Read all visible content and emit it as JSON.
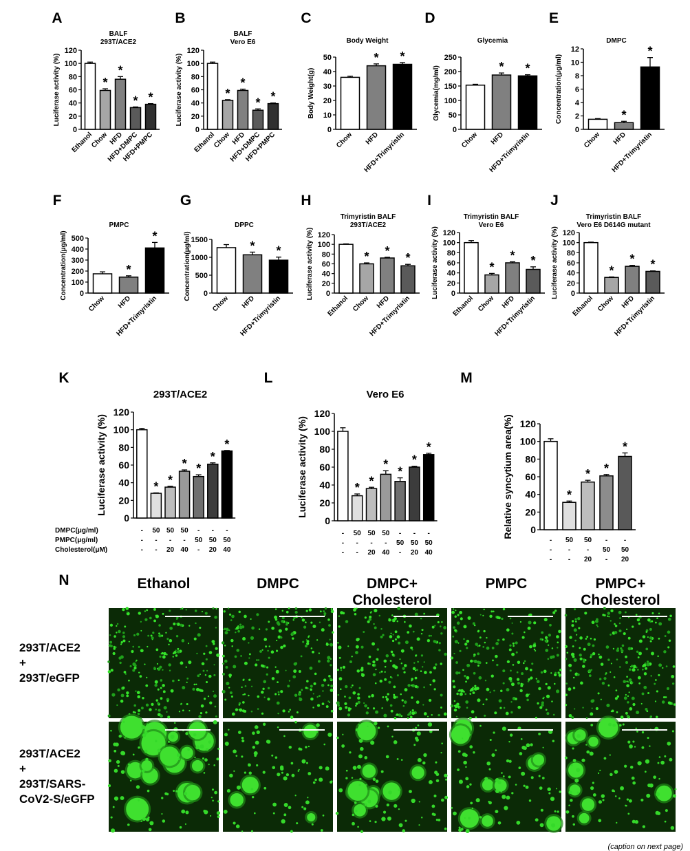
{
  "chart_data": [
    {
      "id": "A",
      "type": "bar",
      "title": "BALF\n293T/ACE2",
      "ylabel": "Luciferase activity (%)",
      "ylim": [
        0,
        120
      ],
      "yticks": [
        0,
        20,
        40,
        60,
        80,
        100,
        120
      ],
      "categories": [
        "Ethanol",
        "Chow",
        "HFD",
        "HFD+DMPC",
        "HFD+PMPC"
      ],
      "values": [
        100,
        59,
        76,
        33,
        38
      ],
      "errors": [
        2,
        2.5,
        4,
        1,
        1
      ],
      "colors": [
        "#ffffff",
        "#a6a6a6",
        "#808080",
        "#5a5a5a",
        "#303030"
      ],
      "stars": [
        false,
        true,
        true,
        true,
        true
      ]
    },
    {
      "id": "B",
      "type": "bar",
      "title": "BALF\nVero E6",
      "ylabel": "Luciferase activity (%)",
      "ylim": [
        0,
        120
      ],
      "yticks": [
        0,
        20,
        40,
        60,
        80,
        100,
        120
      ],
      "categories": [
        "Ethanol",
        "Chow",
        "HFD",
        "HFD+DMPC",
        "HFD+PMPC"
      ],
      "values": [
        100,
        44,
        59,
        29,
        39
      ],
      "errors": [
        2,
        1,
        2,
        2,
        1
      ],
      "colors": [
        "#ffffff",
        "#a6a6a6",
        "#808080",
        "#5a5a5a",
        "#303030"
      ],
      "stars": [
        false,
        true,
        true,
        true,
        true
      ]
    },
    {
      "id": "C",
      "type": "bar",
      "title": "Body Weight",
      "ylabel": "Body Weight(g)",
      "ylim": [
        0,
        50
      ],
      "yticks": [
        0,
        10,
        20,
        30,
        40,
        50
      ],
      "categories": [
        "Chow",
        "HFD",
        "HFD+Trimyristin"
      ],
      "values": [
        36,
        44,
        45
      ],
      "errors": [
        0.8,
        1.3,
        1.2
      ],
      "colors": [
        "#ffffff",
        "#808080",
        "#000000"
      ],
      "stars": [
        false,
        true,
        true
      ]
    },
    {
      "id": "D",
      "type": "bar",
      "title": "Glycemia",
      "ylabel": "Glycemia(mg/ml)",
      "ylim": [
        0,
        250
      ],
      "yticks": [
        0,
        50,
        100,
        150,
        200,
        250
      ],
      "categories": [
        "Chow",
        "HFD",
        "HFD+Trimyristin"
      ],
      "values": [
        153,
        188,
        185
      ],
      "errors": [
        3,
        7,
        4
      ],
      "colors": [
        "#ffffff",
        "#808080",
        "#000000"
      ],
      "stars": [
        false,
        true,
        true
      ]
    },
    {
      "id": "E",
      "type": "bar",
      "title": "DMPC",
      "ylabel": "Concentration(μg/ml)",
      "ylim": [
        0,
        12
      ],
      "yticks": [
        0,
        2,
        4,
        6,
        8,
        10,
        12
      ],
      "categories": [
        "Chow",
        "HFD",
        "HFD+Trimyristin"
      ],
      "values": [
        1.5,
        1.0,
        9.3
      ],
      "errors": [
        0.1,
        0.2,
        1.4
      ],
      "colors": [
        "#ffffff",
        "#808080",
        "#000000"
      ],
      "stars": [
        false,
        true,
        true
      ]
    },
    {
      "id": "F",
      "type": "bar",
      "title": "PMPC",
      "ylabel": "Concentration(μg/ml)",
      "ylim": [
        0,
        500
      ],
      "yticks": [
        0,
        100,
        200,
        300,
        400,
        500
      ],
      "categories": [
        "Chow",
        "HFD",
        "HFD+Trimyristin"
      ],
      "values": [
        175,
        145,
        410
      ],
      "errors": [
        18,
        12,
        50
      ],
      "colors": [
        "#ffffff",
        "#808080",
        "#000000"
      ],
      "stars": [
        false,
        true,
        true
      ]
    },
    {
      "id": "G",
      "type": "bar",
      "title": "DPPC",
      "ylabel": "Concentration(μg/ml)",
      "ylim": [
        0,
        1500
      ],
      "yticks": [
        0,
        500,
        1000,
        1500
      ],
      "categories": [
        "Chow",
        "HFD",
        "HFD+Trimyristin"
      ],
      "values": [
        1270,
        1070,
        920
      ],
      "errors": [
        85,
        75,
        85
      ],
      "colors": [
        "#ffffff",
        "#808080",
        "#000000"
      ],
      "stars": [
        false,
        true,
        true
      ]
    },
    {
      "id": "H",
      "type": "bar",
      "title": "Trimyristin BALF\n293T/ACE2",
      "ylabel": "Luciferase activity (%)",
      "ylim": [
        0,
        120
      ],
      "yticks": [
        0,
        20,
        40,
        60,
        80,
        100,
        120
      ],
      "categories": [
        "Ethanol",
        "Chow",
        "HFD",
        "HFD+Trimyristin"
      ],
      "values": [
        100,
        60,
        72,
        56
      ],
      "errors": [
        1,
        2,
        1.5,
        3
      ],
      "colors": [
        "#ffffff",
        "#a6a6a6",
        "#808080",
        "#5a5a5a"
      ],
      "stars": [
        false,
        true,
        true,
        true
      ]
    },
    {
      "id": "I",
      "type": "bar",
      "title": "Trimyristin BALF\nVero E6",
      "ylabel": "Luciferase activity (%)",
      "ylim": [
        0,
        120
      ],
      "yticks": [
        0,
        20,
        40,
        60,
        80,
        100,
        120
      ],
      "categories": [
        "Ethanol",
        "Chow",
        "HFD",
        "HFD+Trimyristin"
      ],
      "values": [
        100,
        36,
        60,
        47
      ],
      "errors": [
        4,
        3,
        2,
        5
      ],
      "colors": [
        "#ffffff",
        "#a6a6a6",
        "#808080",
        "#5a5a5a"
      ],
      "stars": [
        false,
        true,
        true,
        true
      ]
    },
    {
      "id": "J",
      "type": "bar",
      "title": "Trimyristin BALF\nVero E6 D614G mutant",
      "ylabel": "Luciferase activity (%)",
      "ylim": [
        0,
        120
      ],
      "yticks": [
        0,
        20,
        40,
        60,
        80,
        100,
        120
      ],
      "categories": [
        "Ethanol",
        "Chow",
        "HFD",
        "HFD+Trimyristin"
      ],
      "values": [
        100,
        31,
        53,
        43
      ],
      "errors": [
        1,
        1,
        2,
        1
      ],
      "colors": [
        "#ffffff",
        "#a6a6a6",
        "#808080",
        "#5a5a5a"
      ],
      "stars": [
        false,
        true,
        true,
        true
      ]
    },
    {
      "id": "K",
      "type": "bar",
      "title": "293T/ACE2",
      "ylabel": "Luciferase activity (%)",
      "ylim": [
        0,
        120
      ],
      "yticks": [
        0,
        20,
        40,
        60,
        80,
        100,
        120
      ],
      "values": [
        100,
        28,
        35,
        53,
        47,
        61,
        76
      ],
      "errors": [
        1.5,
        0.5,
        1,
        1.5,
        2,
        1.5,
        0.5
      ],
      "colors": [
        "#ffffff",
        "#e0e0e0",
        "#bdbdbd",
        "#9a9a9a",
        "#6f6f6f",
        "#3c3c3c",
        "#000000"
      ],
      "stars": [
        false,
        true,
        true,
        true,
        true,
        true,
        true
      ],
      "row_labels": [
        "DMPC(μg/ml)",
        "PMPC(μg/ml)",
        "Cholesterol(μM)"
      ],
      "rows": [
        [
          "-",
          "50",
          "50",
          "50",
          "-",
          "-",
          "-"
        ],
        [
          "-",
          "-",
          "-",
          "-",
          "50",
          "50",
          "50"
        ],
        [
          "-",
          "-",
          "20",
          "40",
          "-",
          "20",
          "40"
        ]
      ]
    },
    {
      "id": "L",
      "type": "bar",
      "title": "Vero E6",
      "ylabel": "Luciferase activity (%)",
      "ylim": [
        0,
        120
      ],
      "yticks": [
        0,
        20,
        40,
        60,
        80,
        100,
        120
      ],
      "values": [
        100,
        28,
        36,
        52,
        44,
        60,
        74
      ],
      "errors": [
        4,
        2,
        1.5,
        4,
        4,
        1,
        1.5
      ],
      "colors": [
        "#ffffff",
        "#e0e0e0",
        "#bdbdbd",
        "#9a9a9a",
        "#6f6f6f",
        "#3c3c3c",
        "#000000"
      ],
      "stars": [
        false,
        true,
        true,
        true,
        true,
        true,
        true
      ],
      "rows": [
        [
          "-",
          "50",
          "50",
          "50",
          "-",
          "-",
          "-"
        ],
        [
          "-",
          "-",
          "-",
          "-",
          "50",
          "50",
          "50"
        ],
        [
          "-",
          "-",
          "20",
          "40",
          "-",
          "20",
          "40"
        ]
      ]
    },
    {
      "id": "M",
      "type": "bar",
      "title": "",
      "ylabel": "Relative syncytium area(%)",
      "ylim": [
        0,
        120
      ],
      "yticks": [
        0,
        20,
        40,
        60,
        80,
        100,
        120
      ],
      "values": [
        100,
        31,
        54,
        61,
        83
      ],
      "errors": [
        3,
        1.5,
        2,
        1.5,
        4
      ],
      "colors": [
        "#ffffff",
        "#e0e0e0",
        "#bdbdbd",
        "#8c8c8c",
        "#595959"
      ],
      "stars": [
        false,
        true,
        true,
        true,
        true
      ],
      "rows": [
        [
          "-",
          "50",
          "50",
          "-",
          "-"
        ],
        [
          "-",
          "-",
          "-",
          "50",
          "50"
        ],
        [
          "-",
          "-",
          "20",
          "-",
          "20"
        ]
      ]
    }
  ],
  "panel_n": {
    "label": "N",
    "columns": [
      "Ethanol",
      "DMPC",
      "DMPC+\nCholesterol",
      "PMPC",
      "PMPC+\nCholesterol"
    ],
    "rows": [
      "293T/ACE2\n+\n293T/eGFP",
      "293T/ACE2\n+\n293T/SARS-\nCoV2-S/eGFP"
    ]
  },
  "footer": {
    "caption": "(caption on next page)"
  }
}
